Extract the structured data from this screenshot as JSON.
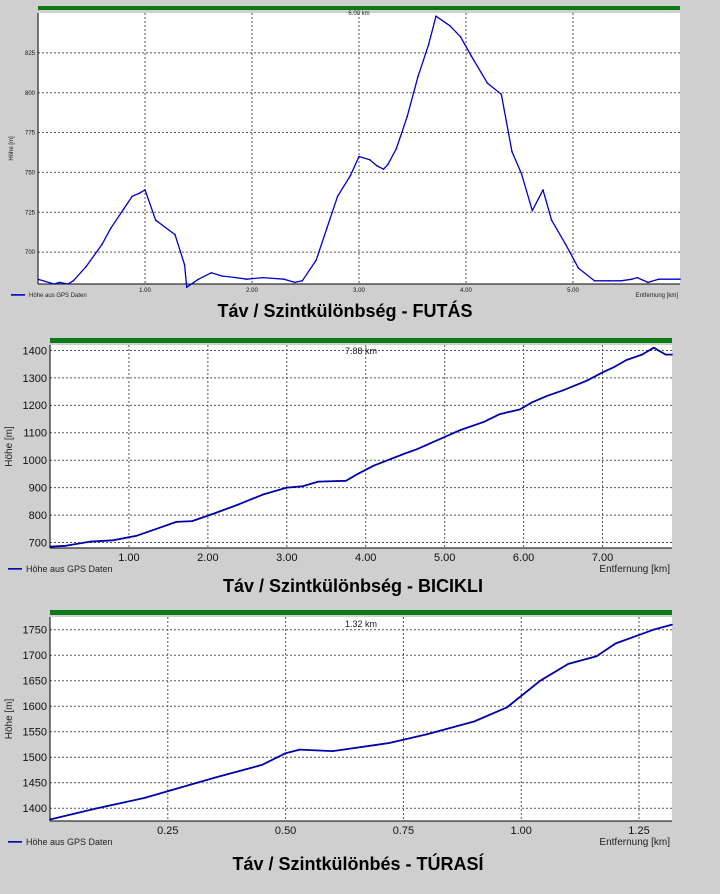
{
  "chart_data": [
    {
      "type": "line",
      "title": "Táv / Szintkülönbség - FUTÁS",
      "top_label": "6.00 km",
      "xlabel": "Entfernung [km]",
      "ylabel": "Höhe [m]",
      "legend": "Höhe aus GPS Daten",
      "xlim": [
        0,
        6.0
      ],
      "ylim": [
        680,
        850
      ],
      "xticks": [
        "1.00",
        "2.00",
        "3.00",
        "4.00",
        "5.00"
      ],
      "xtick_values": [
        1,
        2,
        3,
        4,
        5
      ],
      "yticks": [
        "700",
        "725",
        "750",
        "775",
        "800",
        "825"
      ],
      "ytick_values": [
        700,
        725,
        750,
        775,
        800,
        825
      ],
      "series": [
        {
          "name": "Höhe aus GPS Daten",
          "color": "#0000cc",
          "x": [
            0,
            0.15,
            0.2,
            0.28,
            0.33,
            0.45,
            0.6,
            0.68,
            0.8,
            0.88,
            0.95,
            1.0,
            1.1,
            1.28,
            1.37,
            1.39,
            1.5,
            1.62,
            1.72,
            1.85,
            1.95,
            2.1,
            2.3,
            2.4,
            2.47,
            2.6,
            2.7,
            2.8,
            2.92,
            3.0,
            3.1,
            3.17,
            3.23,
            3.27,
            3.35,
            3.45,
            3.55,
            3.65,
            3.72,
            3.85,
            3.95,
            4.05,
            4.2,
            4.33,
            4.43,
            4.52,
            4.62,
            4.72,
            4.8,
            4.93,
            5.05,
            5.2,
            5.33,
            5.45,
            5.55,
            5.6,
            5.7,
            5.8,
            6.0
          ],
          "values": [
            683,
            680,
            681,
            680,
            682,
            691,
            705,
            715,
            727,
            735,
            737,
            739,
            720,
            711,
            692,
            678,
            683,
            687,
            685,
            684,
            683,
            684,
            683,
            681,
            682,
            695,
            715,
            735,
            748,
            760,
            758,
            754,
            752,
            755,
            765,
            785,
            810,
            830,
            848,
            842,
            835,
            823,
            806,
            799,
            763,
            749,
            726,
            739,
            720,
            705,
            690,
            682,
            682,
            682,
            683,
            684,
            681,
            683,
            683
          ]
        }
      ]
    },
    {
      "type": "line",
      "title": "Táv / Szintkülönbség - BICIKLI",
      "top_label": "7.88 km",
      "xlabel": "Entfernung [km]",
      "ylabel": "Höhe [m]",
      "legend": "Höhe aus GPS Daten",
      "xlim": [
        0,
        7.88
      ],
      "ylim": [
        680,
        1420
      ],
      "xticks": [
        "1.00",
        "2.00",
        "3.00",
        "4.00",
        "5.00",
        "6.00",
        "7.00"
      ],
      "xtick_values": [
        1,
        2,
        3,
        4,
        5,
        6,
        7
      ],
      "yticks": [
        "700",
        "800",
        "900",
        "1000",
        "1100",
        "1200",
        "1300",
        "1400"
      ],
      "ytick_values": [
        700,
        800,
        900,
        1000,
        1100,
        1200,
        1300,
        1400
      ],
      "series": [
        {
          "name": "Höhe aus GPS Daten",
          "color": "#0000aa",
          "x": [
            0,
            0.2,
            0.5,
            0.8,
            1.1,
            1.35,
            1.6,
            1.8,
            2.1,
            2.4,
            2.7,
            3.0,
            3.2,
            3.4,
            3.75,
            3.9,
            4.1,
            4.5,
            4.65,
            5.0,
            5.2,
            5.5,
            5.7,
            5.95,
            6.1,
            6.3,
            6.5,
            6.8,
            7.0,
            7.15,
            7.3,
            7.5,
            7.65,
            7.72,
            7.8,
            7.88
          ],
          "values": [
            685,
            688,
            703,
            708,
            725,
            750,
            775,
            778,
            808,
            840,
            875,
            900,
            905,
            922,
            925,
            950,
            980,
            1025,
            1040,
            1085,
            1110,
            1140,
            1168,
            1185,
            1210,
            1235,
            1255,
            1290,
            1320,
            1340,
            1365,
            1385,
            1410,
            1398,
            1385,
            1385
          ]
        }
      ]
    },
    {
      "type": "line",
      "title": "Táv / Szintkülönbés - TÚRASÍ",
      "top_label": "1.32 km",
      "xlabel": "Entfernung [km]",
      "ylabel": "Höhe [m]",
      "legend": "Höhe aus GPS Daten",
      "xlim": [
        0,
        1.32
      ],
      "ylim": [
        1375,
        1775
      ],
      "xticks": [
        "0.25",
        "0.50",
        "0.75",
        "1.00",
        "1.25"
      ],
      "xtick_values": [
        0.25,
        0.5,
        0.75,
        1.0,
        1.25
      ],
      "yticks": [
        "1400",
        "1450",
        "1500",
        "1550",
        "1600",
        "1650",
        "1700",
        "1750"
      ],
      "ytick_values": [
        1400,
        1450,
        1500,
        1550,
        1600,
        1650,
        1700,
        1750
      ],
      "series": [
        {
          "name": "Höhe aus GPS Daten",
          "color": "#0000aa",
          "x": [
            0,
            0.1,
            0.2,
            0.35,
            0.45,
            0.5,
            0.53,
            0.6,
            0.72,
            0.8,
            0.9,
            0.97,
            1.04,
            1.1,
            1.16,
            1.2,
            1.28,
            1.32
          ],
          "values": [
            1378,
            1400,
            1420,
            1460,
            1485,
            1508,
            1515,
            1512,
            1528,
            1545,
            1570,
            1598,
            1650,
            1683,
            1698,
            1723,
            1750,
            1760
          ]
        }
      ]
    }
  ]
}
